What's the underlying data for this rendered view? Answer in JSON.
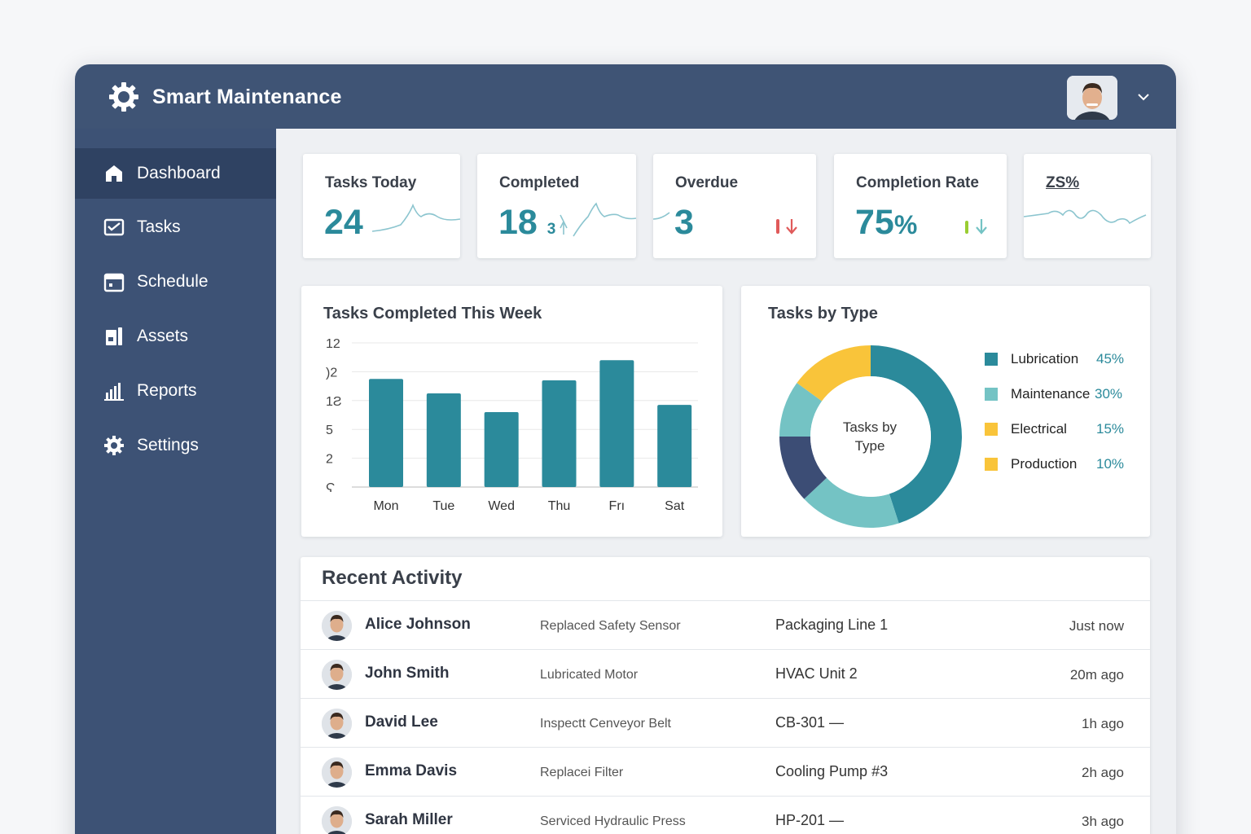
{
  "app": {
    "title": "Smart Maintenance"
  },
  "sidebar": {
    "items": [
      {
        "label": "Dashboard",
        "icon": "home-icon",
        "active": true
      },
      {
        "label": "Tasks",
        "icon": "tasks-icon"
      },
      {
        "label": "Schedule",
        "icon": "calendar-icon"
      },
      {
        "label": "Assets",
        "icon": "assets-icon"
      },
      {
        "label": "Reports",
        "icon": "bar-chart-icon"
      },
      {
        "label": "Settings",
        "icon": "gear-icon"
      }
    ]
  },
  "stats": [
    {
      "label": "Tasks Today",
      "value": "24",
      "sub": ""
    },
    {
      "label": "Completed",
      "value": "18",
      "sub": "3"
    },
    {
      "label": "Overdue",
      "value": "3",
      "sub": ""
    },
    {
      "label": "Completion Rate",
      "value": "75",
      "unit": "%"
    },
    {
      "label": "ZS%",
      "value": ""
    }
  ],
  "colors": {
    "teal": "#2b8a9b",
    "navy": "#3d5275",
    "light_teal": "#74c3c4",
    "yellow": "#f9c43a",
    "dark_navy": "#3c4d75",
    "red": "#e05a5a",
    "green": "#9acd32"
  },
  "chart_data": [
    {
      "type": "bar",
      "title": "Tasks Completed This Week",
      "categories": [
        "Mon",
        "Tue",
        "Wed",
        "Thu",
        "Frı",
        "Sat"
      ],
      "y_tick_labels": [
        "12",
        ")2",
        "1Ƨ",
        "5",
        "2",
        "Ϛ"
      ],
      "values": [
        7.5,
        6.5,
        5.2,
        7.4,
        8.8,
        5.7
      ],
      "ylim": [
        0,
        10
      ]
    },
    {
      "type": "pie",
      "title": "Tasks by Type",
      "center_label": "Tasks by Type",
      "slices": [
        {
          "label": "Lubrication",
          "value": 45,
          "pct": "45%",
          "color": "#2b8a9b"
        },
        {
          "label": "Maintenance",
          "value": 30,
          "pct": "30%",
          "color": "#74c3c4"
        },
        {
          "label": "Electrical",
          "value": 15,
          "pct": "15%",
          "color": "#f9c43a"
        },
        {
          "label": "Production",
          "value": 10,
          "pct": "10%",
          "color": "#f9c43a"
        }
      ]
    }
  ],
  "activity": {
    "title": "Recent Activity",
    "rows": [
      {
        "name": "Alice Johnson",
        "action": "Replaced Safety Sensor",
        "location": "Packaging Line 1",
        "time": "Just now"
      },
      {
        "name": "John Smith",
        "action": "Lubricated Motor",
        "location": "HVAC Unit 2",
        "time": "20m ago"
      },
      {
        "name": "David Lee",
        "action": "Inspectt Cenveyor Belt",
        "location": "CB-301 —",
        "time": "1h ago"
      },
      {
        "name": "Emma Davis",
        "action": "Replacei Filter",
        "location": "Cooling Pump #3",
        "time": "2h ago"
      },
      {
        "name": "Sarah Miller",
        "action": "Serviced Hydraulic Press",
        "location": "HP-201 —",
        "time": "3h ago"
      }
    ]
  }
}
